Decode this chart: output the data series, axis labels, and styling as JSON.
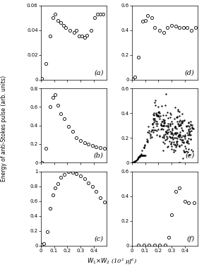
{
  "xlabel": "W$_1$$\\times$W$_2$ (10$^2$ $\\mu$J$^2$)",
  "ylabel": "Energy of anti-Stokes pulse (arb. units)",
  "panel_a": {
    "label": "(a)",
    "ylim": [
      0,
      0.06
    ],
    "yticks": [
      0,
      0.02,
      0.04,
      0.06
    ],
    "x": [
      0.005,
      0.04,
      0.07,
      0.09,
      0.11,
      0.13,
      0.15,
      0.17,
      0.19,
      0.22,
      0.25,
      0.27,
      0.29,
      0.31,
      0.33,
      0.35,
      0.38,
      0.41,
      0.43,
      0.45,
      0.47
    ],
    "y": [
      0.001,
      0.013,
      0.035,
      0.05,
      0.053,
      0.048,
      0.046,
      0.044,
      0.042,
      0.04,
      0.038,
      0.04,
      0.035,
      0.035,
      0.034,
      0.036,
      0.04,
      0.05,
      0.053,
      0.053,
      0.053
    ]
  },
  "panel_b": {
    "label": "(b)",
    "ylim": [
      0,
      0.8
    ],
    "yticks": [
      0,
      0.2,
      0.4,
      0.6,
      0.8
    ],
    "x": [
      0.005,
      0.04,
      0.07,
      0.09,
      0.11,
      0.13,
      0.15,
      0.18,
      0.21,
      0.24,
      0.27,
      0.3,
      0.33,
      0.36,
      0.39,
      0.42,
      0.45,
      0.48
    ],
    "y": [
      0.002,
      0.155,
      0.6,
      0.7,
      0.73,
      0.62,
      0.53,
      0.47,
      0.39,
      0.34,
      0.27,
      0.24,
      0.215,
      0.2,
      0.185,
      0.17,
      0.16,
      0.15
    ]
  },
  "panel_c": {
    "label": "(c)",
    "ylim": [
      0,
      1.0
    ],
    "yticks": [
      0,
      0.2,
      0.4,
      0.6,
      0.8,
      1.0
    ],
    "x": [
      0.005,
      0.02,
      0.05,
      0.07,
      0.09,
      0.11,
      0.13,
      0.15,
      0.18,
      0.21,
      0.24,
      0.27,
      0.3,
      0.33,
      0.36,
      0.39,
      0.42,
      0.45,
      0.48
    ],
    "y": [
      0.02,
      0.03,
      0.19,
      0.5,
      0.68,
      0.78,
      0.84,
      0.92,
      0.96,
      1.0,
      0.99,
      0.97,
      0.94,
      0.9,
      0.85,
      0.8,
      0.73,
      0.65,
      0.59
    ]
  },
  "panel_d": {
    "label": "(d)",
    "ylim": [
      0,
      0.6
    ],
    "yticks": [
      0,
      0.2,
      0.4,
      0.6
    ],
    "x": [
      0.005,
      0.02,
      0.05,
      0.08,
      0.1,
      0.12,
      0.15,
      0.17,
      0.21,
      0.24,
      0.27,
      0.3,
      0.33,
      0.36,
      0.39,
      0.42,
      0.45,
      0.48
    ],
    "y": [
      0.005,
      0.02,
      0.18,
      0.47,
      0.48,
      0.52,
      0.5,
      0.42,
      0.4,
      0.38,
      0.42,
      0.44,
      0.43,
      0.42,
      0.42,
      0.42,
      0.4,
      0.42
    ]
  },
  "panel_e": {
    "label": "(e)",
    "ylim": [
      0,
      0.6
    ],
    "yticks": [
      0,
      0.2,
      0.4,
      0.6
    ],
    "seed": 17,
    "n_main": 280,
    "curve_x": [
      0.005,
      0.01,
      0.02,
      0.04,
      0.06,
      0.09,
      0.12,
      0.15,
      0.18,
      0.22,
      0.27,
      0.32,
      0.38,
      0.43,
      0.48
    ],
    "curve_y": [
      0.001,
      0.003,
      0.008,
      0.025,
      0.055,
      0.12,
      0.2,
      0.3,
      0.38,
      0.3,
      0.25,
      0.23,
      0.22,
      0.22,
      0.22
    ],
    "spread_x": [
      0.1,
      0.15,
      0.2,
      0.25,
      0.3,
      0.35,
      0.4,
      0.45
    ],
    "spread_std": [
      0.03,
      0.05,
      0.07,
      0.08,
      0.08,
      0.08,
      0.08,
      0.08
    ]
  },
  "panel_f": {
    "label": "(f)",
    "ylim": [
      0,
      0.6
    ],
    "yticks": [
      0,
      0.2,
      0.4,
      0.6
    ],
    "x": [
      0.05,
      0.09,
      0.13,
      0.17,
      0.21,
      0.25,
      0.28,
      0.3,
      0.33,
      0.36,
      0.4,
      0.43,
      0.47
    ],
    "y": [
      0.005,
      0.005,
      0.005,
      0.005,
      0.005,
      0.005,
      0.07,
      0.25,
      0.44,
      0.47,
      0.36,
      0.35,
      0.35
    ]
  },
  "xlim": [
    0,
    0.5
  ],
  "xticks": [
    0,
    0.1,
    0.2,
    0.3,
    0.4
  ],
  "xtick_labels": [
    "0",
    "0.1",
    "0.2",
    "0.3",
    "0.4"
  ],
  "ms": 3,
  "mfc": "white",
  "mec": "black",
  "mew": 0.6
}
